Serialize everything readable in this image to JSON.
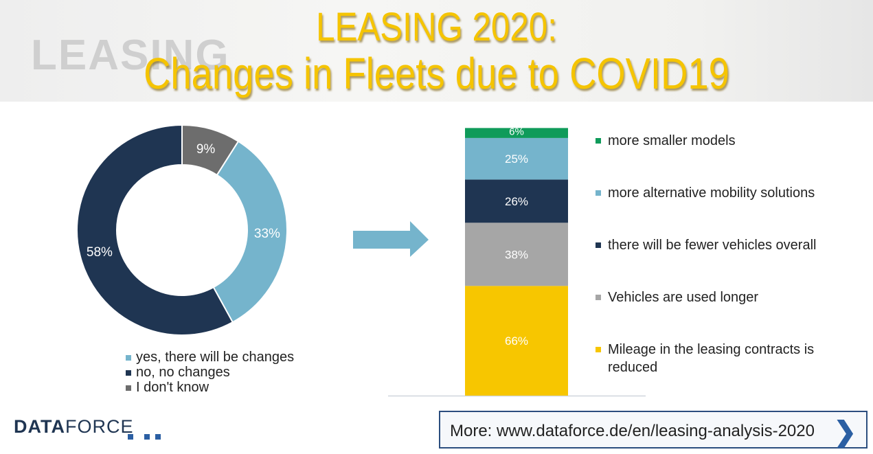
{
  "header": {
    "title_line1": "LEASING 2020:",
    "title_line2": "Changes in Fleets due to COVID19",
    "watermark": "LEASING"
  },
  "chart_data": [
    {
      "type": "pie",
      "variant": "donut",
      "categories": [
        "yes, there will be changes",
        "no, no changes",
        "I don't know"
      ],
      "values": [
        33,
        58,
        9
      ],
      "labels": [
        "33%",
        "58%",
        "9%"
      ],
      "colors": [
        "#75b4cc",
        "#1f3552",
        "#6d6d6d"
      ],
      "legend": "bottom"
    },
    {
      "type": "bar",
      "variant": "stacked",
      "categories": [
        "Mileage in the leasing contracts is reduced",
        "Vehicles are used longer",
        "there will be fewer vehicles overall",
        "more alternative mobility solutions",
        "more smaller models"
      ],
      "values": [
        66,
        38,
        26,
        25,
        6
      ],
      "labels": [
        "66%",
        "38%",
        "26%",
        "25%",
        "6%"
      ],
      "colors": [
        "#f7c600",
        "#a6a6a6",
        "#1f3552",
        "#75b4cc",
        "#0f9b5a"
      ],
      "legend": "right"
    }
  ],
  "arrow_color": "#75b4cc",
  "footer": {
    "logo_bold": "DATA",
    "logo_rest": "FORCE",
    "more_text": "More: www.dataforce.de/en/leasing-analysis-2020"
  }
}
